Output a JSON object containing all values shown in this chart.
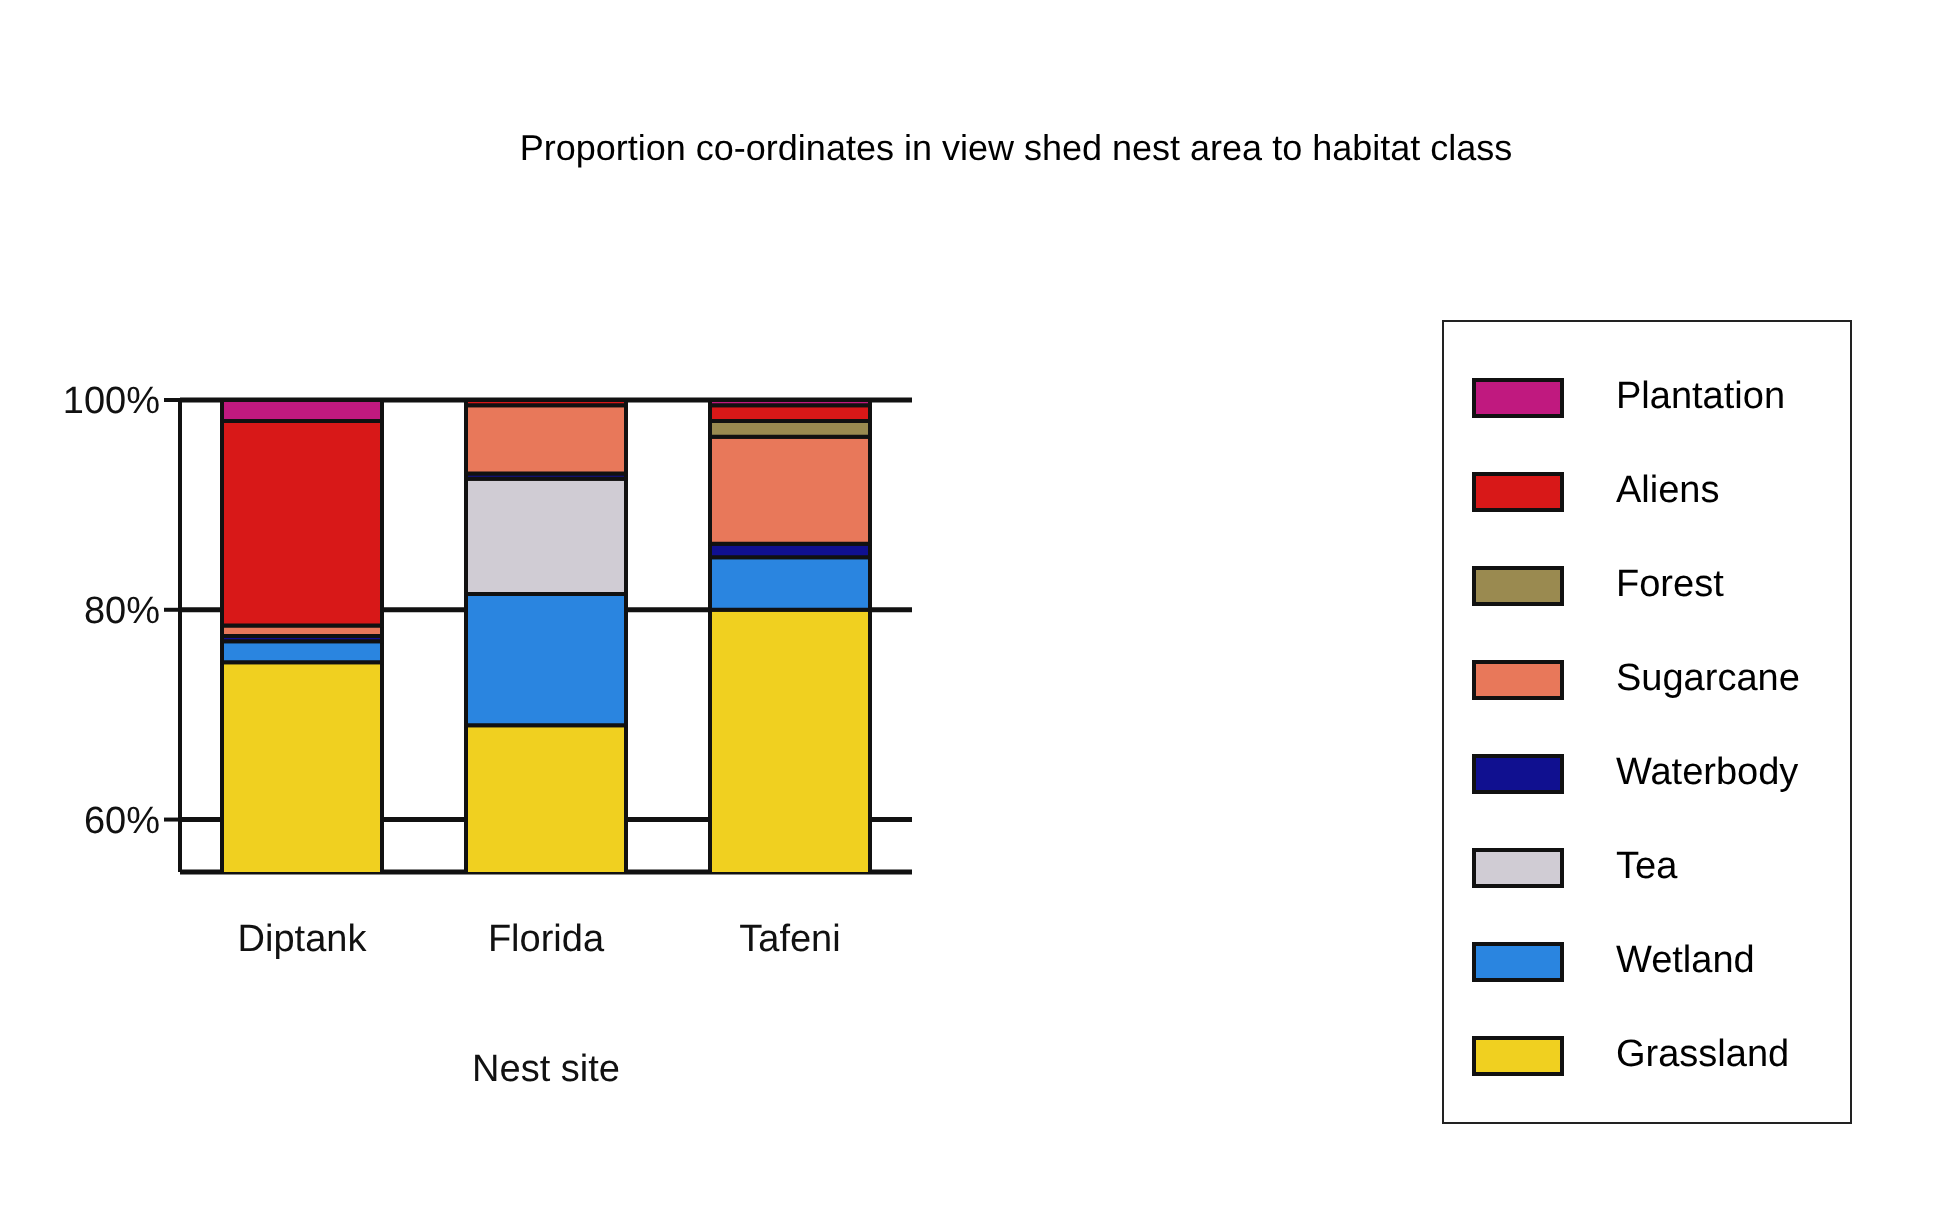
{
  "chart_data": {
    "type": "bar",
    "title": "Proportion co-ordinates in view shed nest area to habitat class",
    "xlabel": "Nest site",
    "categories": [
      "Diptank",
      "Florida",
      "Tafeni"
    ],
    "ylim": [
      55,
      100
    ],
    "yticks": [
      {
        "value": 60,
        "label": "60%"
      },
      {
        "value": 80,
        "label": "80%"
      },
      {
        "value": 100,
        "label": "100%"
      }
    ],
    "grid": "y",
    "legend": "right",
    "series": [
      {
        "name": "Grassland",
        "color": "#f0d020",
        "values": [
          75,
          69,
          80
        ],
        "base": [
          0,
          0,
          0
        ]
      },
      {
        "name": "Wetland",
        "color": "#2a85e0",
        "values": [
          2,
          12.5,
          5
        ],
        "base": [
          75,
          69,
          80
        ]
      },
      {
        "name": "Tea",
        "color": "#d0ccd4",
        "values": [
          null,
          11,
          null
        ],
        "base": [
          null,
          81.5,
          null
        ]
      },
      {
        "name": "Waterbody",
        "color": "#101090",
        "values": [
          0.5,
          0.5,
          1.3
        ],
        "base": [
          77,
          92.5,
          85
        ]
      },
      {
        "name": "Sugarcane",
        "color": "#e8785a",
        "values": [
          1,
          6.5,
          10.2
        ],
        "base": [
          77.5,
          93,
          86.3
        ]
      },
      {
        "name": "Forest",
        "color": "#9a8a50",
        "values": [
          null,
          null,
          1.5
        ],
        "base": [
          null,
          null,
          96.5
        ]
      },
      {
        "name": "Aliens",
        "color": "#d81818",
        "values": [
          19.5,
          0.5,
          1.5
        ],
        "base": [
          78.5,
          99.5,
          98
        ]
      },
      {
        "name": "Plantation",
        "color": "#c0197f",
        "values": [
          2,
          null,
          0.5
        ],
        "base": [
          98,
          null,
          99.5
        ]
      }
    ]
  }
}
